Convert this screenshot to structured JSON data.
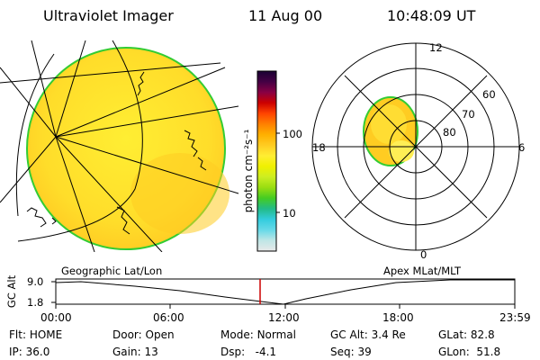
{
  "header": {
    "title": "Ultraviolet Imager",
    "date": "11 Aug 00",
    "time": "10:48:09 UT"
  },
  "colorbar": {
    "unit_label": "photon cm⁻²s⁻¹",
    "ticks": [
      "100",
      "10"
    ],
    "colors": [
      "#e8e8e8",
      "#bfe6e6",
      "#66d9e8",
      "#33ccdd",
      "#22bb88",
      "#44cc22",
      "#99dd11",
      "#ccee22",
      "#f0f000",
      "#ffee33",
      "#ffcc22",
      "#ffb000",
      "#ff8000",
      "#ff4400",
      "#cc0000",
      "#880044",
      "#440044",
      "#1a0033"
    ]
  },
  "polar": {
    "hour_labels": {
      "top": "12",
      "left": "18",
      "right": "6",
      "bottom": "0"
    },
    "lat_labels": [
      "60",
      "70",
      "80"
    ]
  },
  "timeline": {
    "left_title": "Geographic Lat/Lon",
    "right_title": "Apex MLat/MLT",
    "axis_label": "GC Alt",
    "y_max": "9.0",
    "y_min": "1.8",
    "times": [
      "00:00",
      "06:00",
      "12:00",
      "18:00",
      "23:59"
    ],
    "marker_color": "#cc0000"
  },
  "status": {
    "row1": [
      {
        "k": "Flt:",
        "v": "HOME"
      },
      {
        "k": "Door:",
        "v": "Open"
      },
      {
        "k": "Mode:",
        "v": "Normal"
      },
      {
        "k": "GC Alt:",
        "v": "3.4 Re"
      },
      {
        "k": "GLat:",
        "v": "82.8"
      }
    ],
    "row2": [
      {
        "k": "IP:",
        "v": "36.0"
      },
      {
        "k": "Gain:",
        "v": "13"
      },
      {
        "k": "Dsp:",
        "v": "-4.1"
      },
      {
        "k": "Seq:",
        "v": "39"
      },
      {
        "k": "GLon:",
        "v": "51.8"
      }
    ]
  }
}
